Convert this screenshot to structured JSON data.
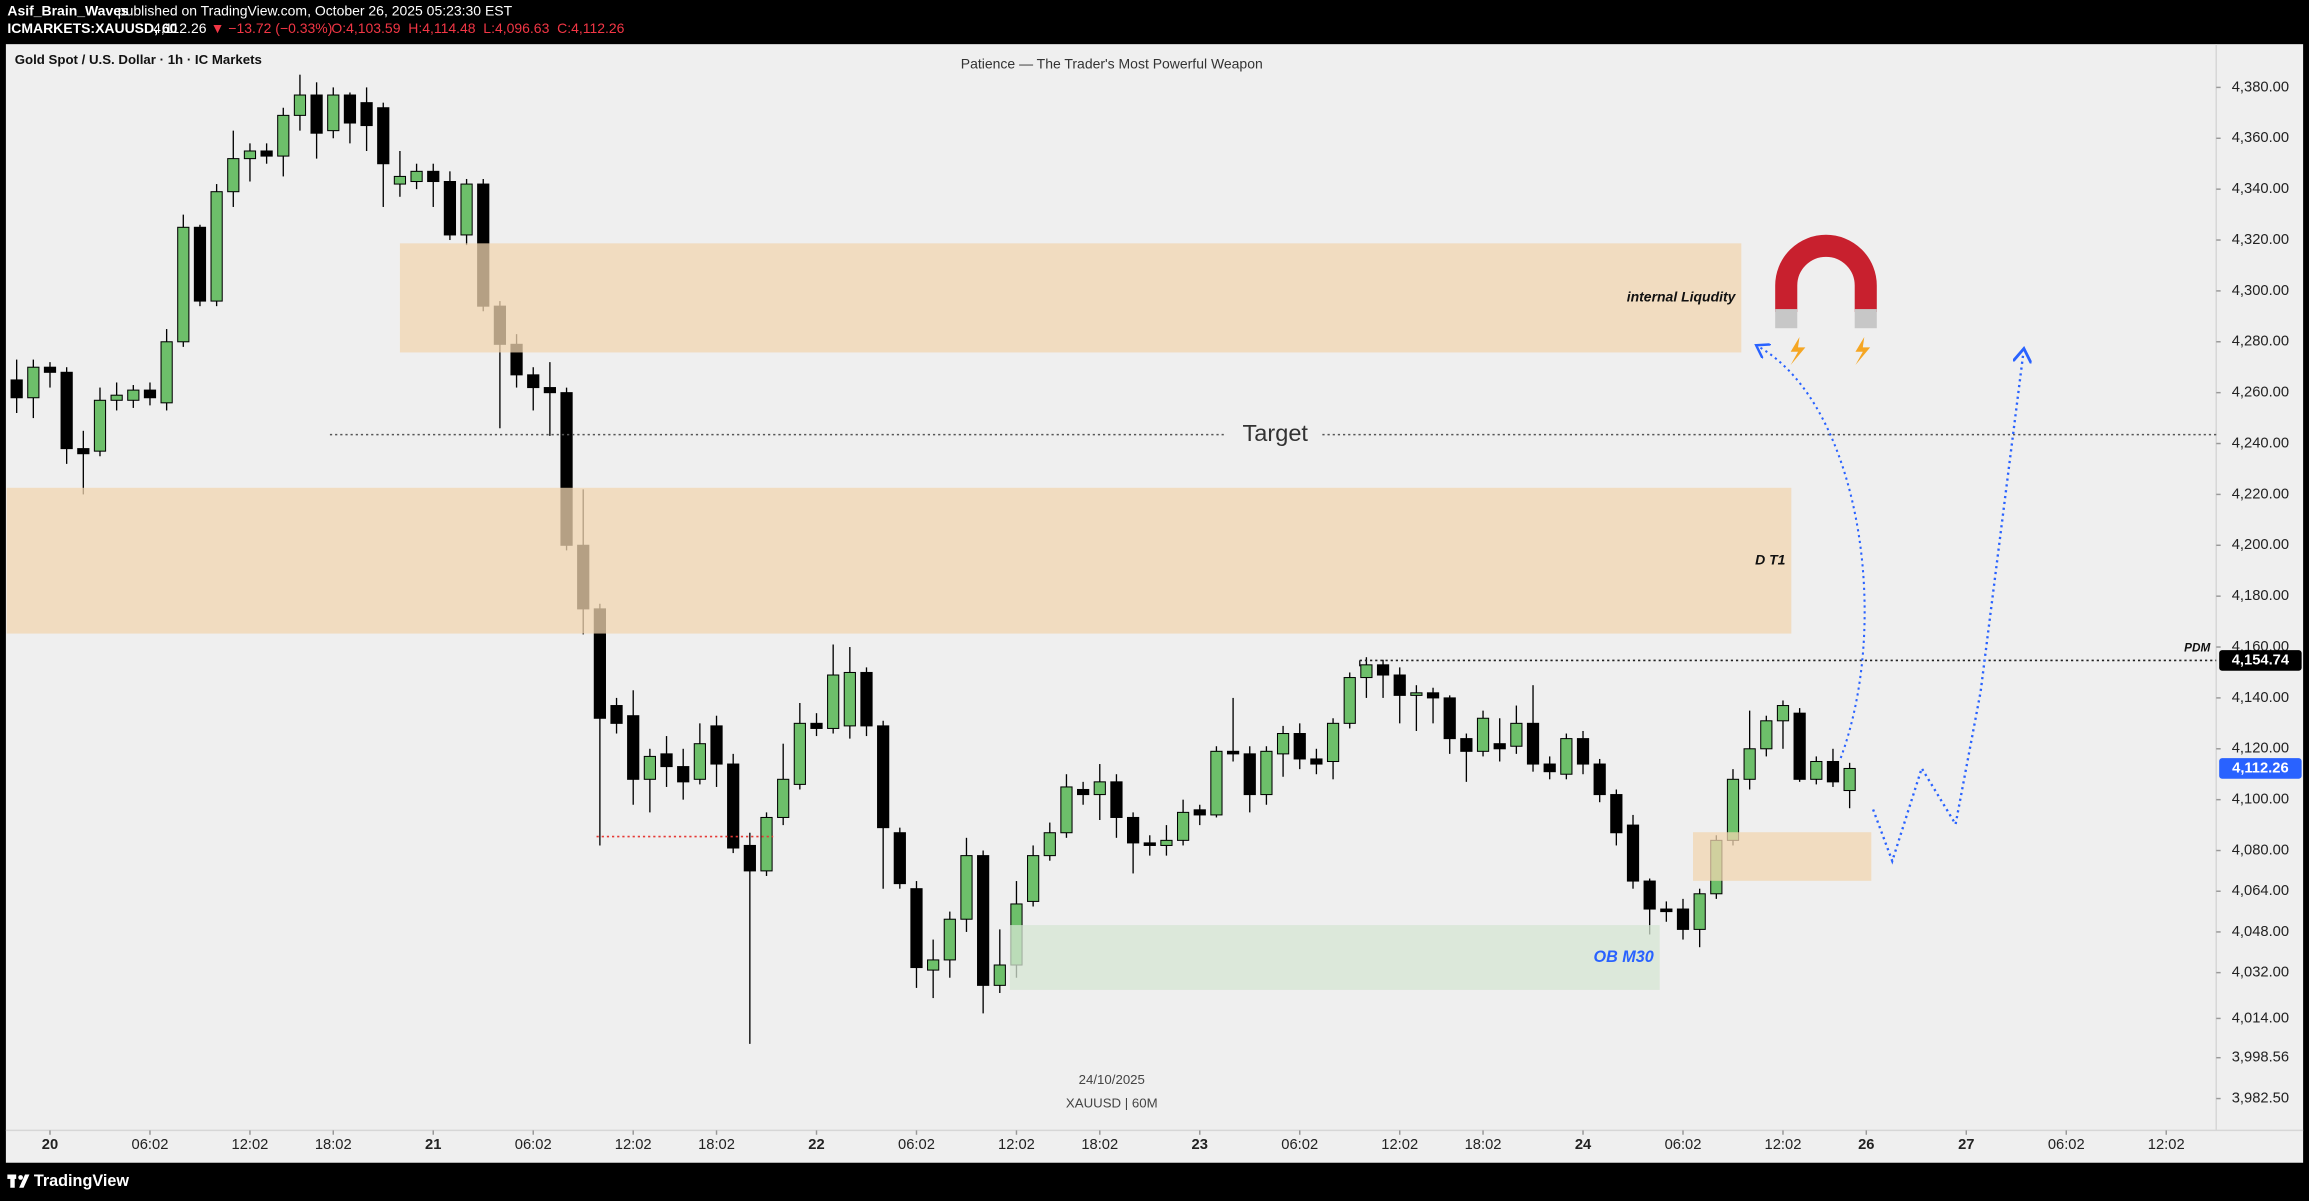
{
  "header": {
    "author": "Asif_Brain_Waves",
    "published": "published on TradingView.com, October 26, 2025 05:23:30 EST",
    "symbol": "ICMARKETS:XAUUSD, 60",
    "last": "4,112.26",
    "change": "▼ −13.72 (−0.33%)",
    "ohlc": "O:4,103.59  H:4,114.48  L:4,096.63  C:4,112.26"
  },
  "footer": {
    "brand": "TradingView"
  },
  "chart_data": {
    "type": "candlestick",
    "legend": "Gold Spot / U.S. Dollar · 1h · IC Markets",
    "title": "Patience — The Trader's Most Powerful Weapon",
    "watermark": [
      "24/10/2025",
      "XAUUSD | 60M"
    ],
    "up_color": "#6dbf6a",
    "down_color": "#000000",
    "open": [
      4265,
      4258,
      4270,
      4268,
      4238,
      4237,
      4257,
      4257,
      4261,
      4256,
      4280,
      4325,
      4296,
      4339,
      4352,
      4355,
      4353,
      4369,
      4377,
      4363,
      4377,
      4374,
      4372,
      4342,
      4343,
      4347,
      4343,
      4322,
      4342,
      4294,
      4279,
      4267,
      4262,
      4260,
      4200,
      4175,
      4137,
      4133,
      4108,
      4118,
      4113,
      4108,
      4129,
      4114,
      4082,
      4072,
      4093,
      4106,
      4130,
      4128,
      4129,
      4150,
      4129,
      4087,
      4065,
      4033,
      4037,
      4053,
      4078,
      4027,
      4035,
      4060,
      4078,
      4087,
      4104,
      4102,
      4107,
      4093,
      4083,
      4082,
      4084,
      4096,
      4094,
      4119,
      4118,
      4102,
      4118,
      4126,
      4116,
      4115,
      4130,
      4148,
      4153,
      4149,
      4141,
      4142,
      4140,
      4124,
      4119,
      4122,
      4121,
      4130,
      4114,
      4110,
      4124,
      4114,
      4102,
      4090,
      4068,
      4057,
      4057,
      4049,
      4063,
      4084,
      4108,
      4120,
      4131,
      4134,
      4108,
      4115,
      4103.59
    ],
    "high": [
      4273,
      4273,
      4272,
      4270,
      4245,
      4262,
      4264,
      4263,
      4264,
      4285,
      4330,
      4326,
      4342,
      4363,
      4358,
      4358,
      4372,
      4385,
      4382,
      4380,
      4378,
      4380,
      4374,
      4355,
      4350,
      4350,
      4347,
      4344,
      4344,
      4296,
      4283,
      4270,
      4272,
      4262,
      4222,
      4177,
      4140,
      4143,
      4120,
      4125,
      4120,
      4130,
      4133,
      4118,
      4087,
      4095,
      4122,
      4138,
      4134,
      4161,
      4160,
      4152,
      4131,
      4089,
      4068,
      4045,
      4056,
      4085,
      4080,
      4049,
      4068,
      4082,
      4091,
      4110,
      4107,
      4114,
      4110,
      4095,
      4086,
      4090,
      4100,
      4098,
      4121,
      4140,
      4121,
      4121,
      4129,
      4130,
      4120,
      4132,
      4150,
      4156,
      4155,
      4152,
      4145,
      4144,
      4141,
      4126,
      4135,
      4132,
      4137,
      4145,
      4117,
      4126,
      4127,
      4116,
      4104,
      4094,
      4069,
      4060,
      4061,
      4065,
      4086,
      4112,
      4135,
      4133,
      4139,
      4136,
      4117,
      4120,
      4114.48
    ],
    "low": [
      4252,
      4250,
      4262,
      4232,
      4220,
      4235,
      4253,
      4254,
      4255,
      4253,
      4278,
      4294,
      4294,
      4333,
      4343,
      4350,
      4345,
      4363,
      4352,
      4360,
      4358,
      4355,
      4333,
      4337,
      4340,
      4333,
      4320,
      4318,
      4292,
      4246,
      4262,
      4253,
      4243,
      4198,
      4165,
      4082,
      4126,
      4098,
      4095,
      4105,
      4100,
      4106,
      4105,
      4079,
      4004,
      4070,
      4090,
      4104,
      4125,
      4126,
      4124,
      4125,
      4065,
      4065,
      4026,
      4022,
      4030,
      4048,
      4016,
      4024,
      4030,
      4058,
      4076,
      4085,
      4098,
      4092,
      4085,
      4071,
      4078,
      4078,
      4082,
      4090,
      4093,
      4115,
      4095,
      4098,
      4109,
      4112,
      4110,
      4108,
      4128,
      4140,
      4140,
      4130,
      4127,
      4130,
      4118,
      4107,
      4117,
      4115,
      4118,
      4111,
      4108,
      4108,
      4110,
      4099,
      4082,
      4065,
      4047,
      4052,
      4045,
      4042,
      4061,
      4082,
      4104,
      4117,
      4120,
      4107,
      4106,
      4105,
      4096.63
    ],
    "close": [
      4258,
      4270,
      4268,
      4238,
      4236,
      4257,
      4259,
      4261,
      4258,
      4280,
      4325,
      4296,
      4339,
      4352,
      4355,
      4353,
      4369,
      4377,
      4362,
      4377,
      4366,
      4365,
      4350,
      4345,
      4347,
      4343,
      4322,
      4342,
      4294,
      4279,
      4267,
      4262,
      4260,
      4200,
      4175,
      4132,
      4130,
      4108,
      4117,
      4113,
      4107,
      4122,
      4114,
      4081,
      4072,
      4093,
      4108,
      4130,
      4128,
      4149,
      4150,
      4129,
      4089,
      4067,
      4034,
      4037,
      4053,
      4078,
      4027,
      4035,
      4059,
      4078,
      4087,
      4105,
      4102,
      4107,
      4093,
      4083,
      4082,
      4084,
      4095,
      4094,
      4119,
      4118,
      4102,
      4119,
      4126,
      4116,
      4114,
      4130,
      4148,
      4153,
      4149,
      4141,
      4142,
      4140,
      4124,
      4119,
      4132,
      4120,
      4130,
      4114,
      4111,
      4124,
      4114,
      4102,
      4087,
      4068,
      4057,
      4056,
      4049,
      4063,
      4084,
      4108,
      4120,
      4131,
      4137,
      4108,
      4115,
      4107,
      4112.26
    ],
    "xlim": [
      -1,
      132
    ],
    "xticks": [
      {
        "value": 2,
        "label": "20"
      },
      {
        "value": 8,
        "label": "06:02"
      },
      {
        "value": 14,
        "label": "12:02"
      },
      {
        "value": 19,
        "label": "18:02"
      },
      {
        "value": 25,
        "label": "21"
      },
      {
        "value": 31,
        "label": "06:02"
      },
      {
        "value": 37,
        "label": "12:02"
      },
      {
        "value": 42,
        "label": "18:02"
      },
      {
        "value": 48,
        "label": "22"
      },
      {
        "value": 54,
        "label": "06:02"
      },
      {
        "value": 60,
        "label": "12:02"
      },
      {
        "value": 65,
        "label": "18:02"
      },
      {
        "value": 71,
        "label": "23"
      },
      {
        "value": 77,
        "label": "06:02"
      },
      {
        "value": 83,
        "label": "12:02"
      },
      {
        "value": 88,
        "label": "18:02"
      },
      {
        "value": 94,
        "label": "24"
      },
      {
        "value": 100,
        "label": "06:02"
      },
      {
        "value": 106,
        "label": "12:02"
      },
      {
        "value": 111,
        "label": "26"
      },
      {
        "value": 117,
        "label": "27"
      },
      {
        "value": 123,
        "label": "06:02"
      },
      {
        "value": 129,
        "label": "12:02"
      }
    ],
    "ylim": [
      3970,
      4397
    ],
    "yticks": [
      {
        "value": 4380,
        "label": "4,380.00"
      },
      {
        "value": 4360,
        "label": "4,360.00"
      },
      {
        "value": 4340,
        "label": "4,340.00"
      },
      {
        "value": 4320,
        "label": "4,320.00"
      },
      {
        "value": 4300,
        "label": "4,300.00"
      },
      {
        "value": 4280,
        "label": "4,280.00"
      },
      {
        "value": 4260,
        "label": "4,260.00"
      },
      {
        "value": 4240,
        "label": "4,240.00"
      },
      {
        "value": 4220,
        "label": "4,220.00"
      },
      {
        "value": 4200,
        "label": "4,200.00"
      },
      {
        "value": 4180,
        "label": "4,180.00"
      },
      {
        "value": 4160,
        "label": "4,160.00"
      },
      {
        "value": 4140,
        "label": "4,140.00"
      },
      {
        "value": 4120,
        "label": "4,120.00"
      },
      {
        "value": 4100,
        "label": "4,100.00"
      },
      {
        "value": 4080,
        "label": "4,080.00"
      },
      {
        "value": 4064,
        "label": "4,064.00"
      },
      {
        "value": 4048,
        "label": "4,048.00"
      },
      {
        "value": 4032,
        "label": "4,032.00"
      },
      {
        "value": 4014,
        "label": "4,014.00"
      },
      {
        "value": 3998.56,
        "label": "3,998.56"
      },
      {
        "value": 3982.5,
        "label": "3,982.50"
      }
    ],
    "zones": [
      {
        "label": "internal Liqudity",
        "y": [
          4318.7,
          4275.8
        ],
        "x": [
          23,
          103.5
        ],
        "color": "#f2d6b0"
      },
      {
        "label": "D T1",
        "y": [
          4222.6,
          4165.3
        ],
        "x": [
          -0.6,
          106.5
        ],
        "color": "#f2d6b0"
      },
      {
        "label": "OB M30",
        "y": [
          4050.7,
          4025.2
        ],
        "x": [
          59.6,
          98.6
        ],
        "color": "#d5e5d3"
      },
      {
        "y": [
          4087.2,
          4068.1
        ],
        "x": [
          100.6,
          111.3
        ],
        "color": "#f2d6b0"
      }
    ],
    "levels": [
      {
        "label": "Target",
        "value": 4243.5,
        "x": [
          18.8,
          132
        ],
        "color": "#555555"
      },
      {
        "label": "PDM",
        "value": 4154.74,
        "value_label": "4,154.74",
        "x": [
          80.6,
          132
        ],
        "color": "#222222"
      },
      {
        "value": 4085.5,
        "x": [
          34.8,
          45.4
        ],
        "color": "#e53935"
      }
    ],
    "last_price": {
      "value": 4112.26,
      "label": "4,112.26",
      "color": "#2962ff"
    }
  }
}
